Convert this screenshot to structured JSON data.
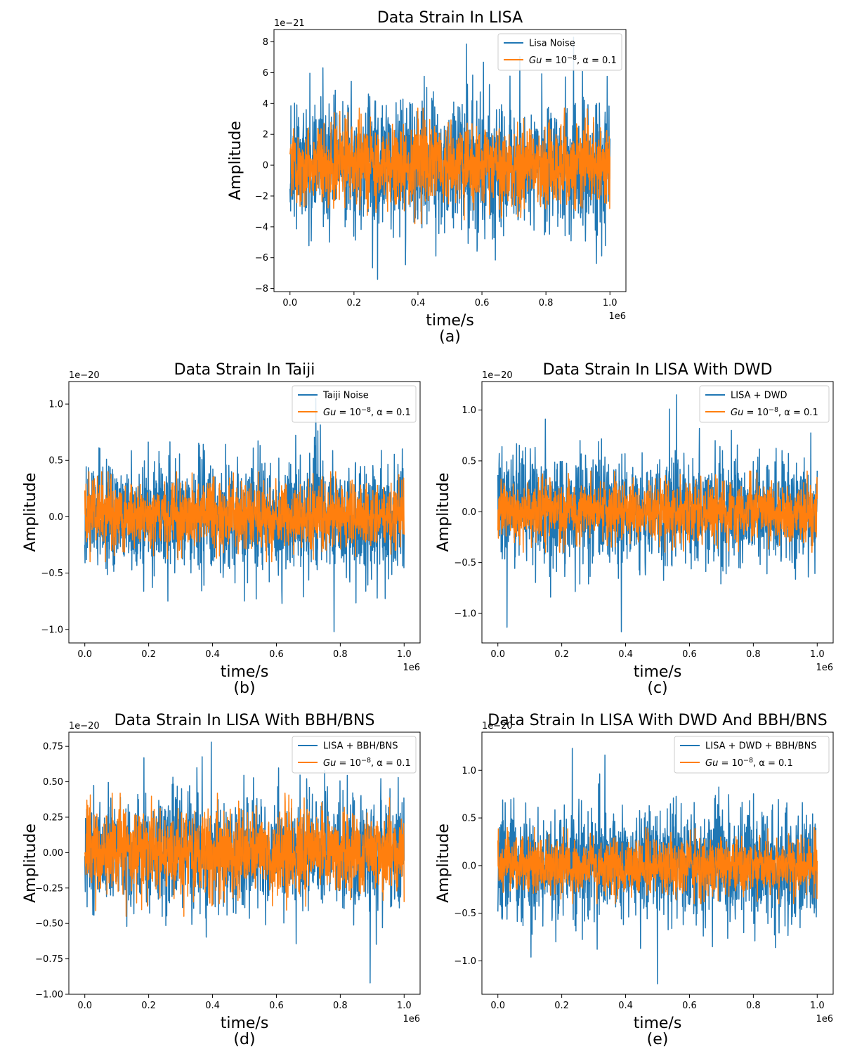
{
  "colors": {
    "noise": "#1f77b4",
    "signal": "#ff7f0e",
    "axis": "#000000"
  },
  "chart_data": [
    {
      "id": "a",
      "type": "line",
      "title": "Data Strain In LISA",
      "panel_label": "(a)",
      "xlabel": "time/s",
      "ylabel": "Amplitude",
      "x_offset_text": "1e6",
      "y_offset_text": "1e−21",
      "xlim": [
        -0.05,
        1.05
      ],
      "ylim": [
        -8.2,
        8.8
      ],
      "xticks": [
        0.0,
        0.2,
        0.4,
        0.6,
        0.8,
        1.0
      ],
      "xtick_labels": [
        "0.0",
        "0.2",
        "0.4",
        "0.6",
        "0.8",
        "1.0"
      ],
      "yticks": [
        -8,
        -6,
        -4,
        -2,
        0,
        2,
        4,
        6,
        8
      ],
      "ytick_labels": [
        "−8",
        "−6",
        "−4",
        "−2",
        "0",
        "2",
        "4",
        "6",
        "8"
      ],
      "legend_position": "upper right",
      "series": [
        {
          "name": "Lisa Noise",
          "x_range": [
            0,
            1
          ],
          "envelope": [
            -7.4,
            8.3
          ],
          "typical": 4.2
        },
        {
          "name": "Gu = 10^-8, α = 0.1",
          "legend_parts": [
            "Gu",
            " = 10",
            "−8",
            ", α = 0.1"
          ],
          "x_range": [
            0,
            1
          ],
          "envelope": [
            -3.8,
            3.7
          ],
          "typical": 2.6
        }
      ]
    },
    {
      "id": "b",
      "type": "line",
      "title": "Data Strain In Taiji",
      "panel_label": "(b)",
      "xlabel": "time/s",
      "ylabel": "Amplitude",
      "x_offset_text": "1e6",
      "y_offset_text": "1e−20",
      "xlim": [
        -0.05,
        1.05
      ],
      "ylim": [
        -1.12,
        1.2
      ],
      "xticks": [
        0.0,
        0.2,
        0.4,
        0.6,
        0.8,
        1.0
      ],
      "xtick_labels": [
        "0.0",
        "0.2",
        "0.4",
        "0.6",
        "0.8",
        "1.0"
      ],
      "yticks": [
        -1.0,
        -0.5,
        0.0,
        0.5,
        1.0
      ],
      "ytick_labels": [
        "−1.0",
        "−0.5",
        "0.0",
        "0.5",
        "1.0"
      ],
      "legend_position": "upper right",
      "series": [
        {
          "name": "Taiji Noise",
          "x_range": [
            0,
            1
          ],
          "envelope": [
            -1.02,
            1.05
          ],
          "typical": 0.5
        },
        {
          "name": "Gu = 10^-8, α = 0.1",
          "legend_parts": [
            "Gu",
            " = 10",
            "−8",
            ", α = 0.1"
          ],
          "x_range": [
            0,
            1
          ],
          "envelope": [
            -0.4,
            0.4
          ],
          "typical": 0.3
        }
      ]
    },
    {
      "id": "c",
      "type": "line",
      "title": "Data Strain In LISA With DWD",
      "panel_label": "(c)",
      "xlabel": "time/s",
      "ylabel": "Amplitude",
      "x_offset_text": "1e6",
      "y_offset_text": "1e−20",
      "xlim": [
        -0.05,
        1.05
      ],
      "ylim": [
        -1.29,
        1.28
      ],
      "xticks": [
        0.0,
        0.2,
        0.4,
        0.6,
        0.8,
        1.0
      ],
      "xtick_labels": [
        "0.0",
        "0.2",
        "0.4",
        "0.6",
        "0.8",
        "1.0"
      ],
      "yticks": [
        -1.0,
        -0.5,
        0.0,
        0.5,
        1.0
      ],
      "ytick_labels": [
        "−1.0",
        "−0.5",
        "0.0",
        "0.5",
        "1.0"
      ],
      "legend_position": "upper right",
      "series": [
        {
          "name": "LISA + DWD",
          "x_range": [
            0,
            1
          ],
          "envelope": [
            -1.18,
            1.15
          ],
          "typical": 0.55
        },
        {
          "name": "Gu = 10^-8, α = 0.1",
          "legend_parts": [
            "Gu",
            " = 10",
            "−8",
            ", α = 0.1"
          ],
          "x_range": [
            0,
            1
          ],
          "envelope": [
            -0.4,
            0.4
          ],
          "typical": 0.3
        }
      ]
    },
    {
      "id": "d",
      "type": "line",
      "title": "Data Strain In LISA With BBH/BNS",
      "panel_label": "(d)",
      "xlabel": "time/s",
      "ylabel": "Amplitude",
      "x_offset_text": "1e6",
      "y_offset_text": "1e−20",
      "xlim": [
        -0.05,
        1.05
      ],
      "ylim": [
        -1.0,
        0.85
      ],
      "xticks": [
        0.0,
        0.2,
        0.4,
        0.6,
        0.8,
        1.0
      ],
      "xtick_labels": [
        "0.0",
        "0.2",
        "0.4",
        "0.6",
        "0.8",
        "1.0"
      ],
      "yticks": [
        -1.0,
        -0.75,
        -0.5,
        -0.25,
        0.0,
        0.25,
        0.5,
        0.75
      ],
      "ytick_labels": [
        "−1.00",
        "−0.75",
        "−0.50",
        "−0.25",
        "0.00",
        "0.25",
        "0.50",
        "0.75"
      ],
      "legend_position": "upper right",
      "series": [
        {
          "name": "LISA + BBH/BNS",
          "x_range": [
            0,
            1
          ],
          "envelope": [
            -0.92,
            0.78
          ],
          "typical": 0.4
        },
        {
          "name": "Gu = 10^-8, α = 0.1",
          "legend_parts": [
            "Gu",
            " = 10",
            "−8",
            ", α = 0.1"
          ],
          "x_range": [
            0,
            1
          ],
          "envelope": [
            -0.45,
            0.42
          ],
          "typical": 0.3
        }
      ]
    },
    {
      "id": "e",
      "type": "line",
      "title": "Data Strain In LISA With DWD And BBH/BNS",
      "panel_label": "(e)",
      "xlabel": "time/s",
      "ylabel": "Amplitude",
      "x_offset_text": "1e6",
      "y_offset_text": "1e−20",
      "xlim": [
        -0.05,
        1.05
      ],
      "ylim": [
        -1.35,
        1.4
      ],
      "xticks": [
        0.0,
        0.2,
        0.4,
        0.6,
        0.8,
        1.0
      ],
      "xtick_labels": [
        "0.0",
        "0.2",
        "0.4",
        "0.6",
        "0.8",
        "1.0"
      ],
      "yticks": [
        -1.0,
        -0.5,
        0.0,
        0.5,
        1.0
      ],
      "ytick_labels": [
        "−1.0",
        "−0.5",
        "0.0",
        "0.5",
        "1.0"
      ],
      "legend_position": "upper right",
      "series": [
        {
          "name": "LISA + DWD + BBH/BNS",
          "x_range": [
            0,
            1
          ],
          "envelope": [
            -1.24,
            1.23
          ],
          "typical": 0.6
        },
        {
          "name": "Gu = 10^-8, α = 0.1",
          "legend_parts": [
            "Gu",
            " = 10",
            "−8",
            ", α = 0.1"
          ],
          "x_range": [
            0,
            1
          ],
          "envelope": [
            -0.4,
            0.4
          ],
          "typical": 0.3
        }
      ]
    }
  ]
}
